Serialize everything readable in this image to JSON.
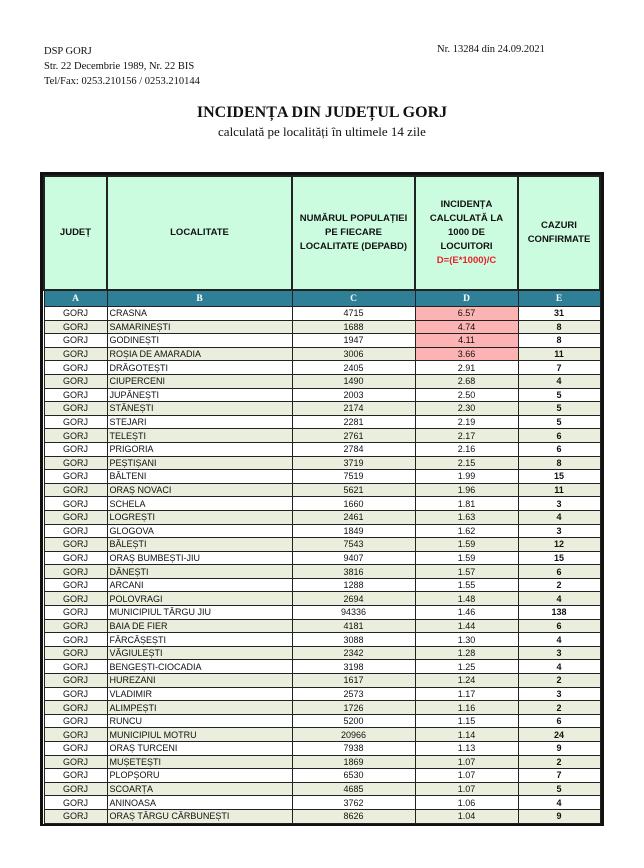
{
  "header": {
    "org": "DSP GORJ",
    "address": "Str. 22 Decembrie 1989, Nr. 22 BIS",
    "phone": "Tel/Fax: 0253.210156 / 0253.210144",
    "reference": "Nr. 13284 din  24.09.2021"
  },
  "title": "INCIDENȚA DIN JUDEȚUL GORJ",
  "subtitle": "calculată pe localități în ultimele 14 zile",
  "table": {
    "columns": [
      {
        "label": "JUDEȚ",
        "letter": "A"
      },
      {
        "label": "LOCALITATE",
        "letter": "B"
      },
      {
        "label": "NUMĂRUL POPULAȚIEI PE FIECARE LOCALITATE (DEPABD)",
        "letter": "C"
      },
      {
        "label": "INCIDENȚA CALCULATĂ LA 1000 DE LOCUITORI",
        "formula": "D=(E*1000)/C",
        "letter": "D"
      },
      {
        "label": "CAZURI CONFIRMATE",
        "letter": "E"
      }
    ],
    "highlight_color": "#fcb3b3",
    "rows": [
      [
        "GORJ",
        "CRASNA",
        "4715",
        "6.57",
        "31"
      ],
      [
        "GORJ",
        "SAMARINEȘTI",
        "1688",
        "4.74",
        "8"
      ],
      [
        "GORJ",
        "GODINEȘTI",
        "1947",
        "4.11",
        "8"
      ],
      [
        "GORJ",
        "ROȘIA DE AMARADIA",
        "3006",
        "3.66",
        "11"
      ],
      [
        "GORJ",
        "DRĂGOTEȘTI",
        "2405",
        "2.91",
        "7"
      ],
      [
        "GORJ",
        "CIUPERCENI",
        "1490",
        "2.68",
        "4"
      ],
      [
        "GORJ",
        "JUPÂNEȘTI",
        "2003",
        "2.50",
        "5"
      ],
      [
        "GORJ",
        "STĂNEȘTI",
        "2174",
        "2.30",
        "5"
      ],
      [
        "GORJ",
        "STEJARI",
        "2281",
        "2.19",
        "5"
      ],
      [
        "GORJ",
        "TELEȘTI",
        "2761",
        "2.17",
        "6"
      ],
      [
        "GORJ",
        "PRIGORIA",
        "2784",
        "2.16",
        "6"
      ],
      [
        "GORJ",
        "PEȘTIȘANI",
        "3719",
        "2.15",
        "8"
      ],
      [
        "GORJ",
        "BÂLTENI",
        "7519",
        "1.99",
        "15"
      ],
      [
        "GORJ",
        "ORAȘ NOVACI",
        "5621",
        "1.96",
        "11"
      ],
      [
        "GORJ",
        "SCHELA",
        "1660",
        "1.81",
        "3"
      ],
      [
        "GORJ",
        "LOGREȘTI",
        "2461",
        "1.63",
        "4"
      ],
      [
        "GORJ",
        "GLOGOVA",
        "1849",
        "1.62",
        "3"
      ],
      [
        "GORJ",
        "BĂLEȘTI",
        "7543",
        "1.59",
        "12"
      ],
      [
        "GORJ",
        "ORAȘ BUMBEȘTI-JIU",
        "9407",
        "1.59",
        "15"
      ],
      [
        "GORJ",
        "DĂNEȘTI",
        "3816",
        "1.57",
        "6"
      ],
      [
        "GORJ",
        "ARCANI",
        "1288",
        "1.55",
        "2"
      ],
      [
        "GORJ",
        "POLOVRAGI",
        "2694",
        "1.48",
        "4"
      ],
      [
        "GORJ",
        "MUNICIPIUL TÂRGU JIU",
        "94336",
        "1.46",
        "138"
      ],
      [
        "GORJ",
        "BAIA DE FIER",
        "4181",
        "1.44",
        "6"
      ],
      [
        "GORJ",
        "FĂRCĂȘEȘTI",
        "3088",
        "1.30",
        "4"
      ],
      [
        "GORJ",
        "VĂGIULEȘTI",
        "2342",
        "1.28",
        "3"
      ],
      [
        "GORJ",
        "BENGEȘTI-CIOCADIA",
        "3198",
        "1.25",
        "4"
      ],
      [
        "GORJ",
        "HUREZANI",
        "1617",
        "1.24",
        "2"
      ],
      [
        "GORJ",
        "VLADIMIR",
        "2573",
        "1.17",
        "3"
      ],
      [
        "GORJ",
        "ALIMPEȘTI",
        "1726",
        "1.16",
        "2"
      ],
      [
        "GORJ",
        "RUNCU",
        "5200",
        "1.15",
        "6"
      ],
      [
        "GORJ",
        "MUNICIPIUL MOTRU",
        "20966",
        "1.14",
        "24"
      ],
      [
        "GORJ",
        "ORAȘ TURCENI",
        "7938",
        "1.13",
        "9"
      ],
      [
        "GORJ",
        "MUȘETEȘTI",
        "1869",
        "1.07",
        "2"
      ],
      [
        "GORJ",
        "PLOPȘORU",
        "6530",
        "1.07",
        "7"
      ],
      [
        "GORJ",
        "SCOARȚA",
        "4685",
        "1.07",
        "5"
      ],
      [
        "GORJ",
        "ANINOASA",
        "3762",
        "1.06",
        "4"
      ],
      [
        "GORJ",
        "ORAȘ TÂRGU CĂRBUNEȘTI",
        "8626",
        "1.04",
        "9"
      ]
    ],
    "highlighted_rows": [
      0,
      1,
      2,
      3
    ]
  }
}
